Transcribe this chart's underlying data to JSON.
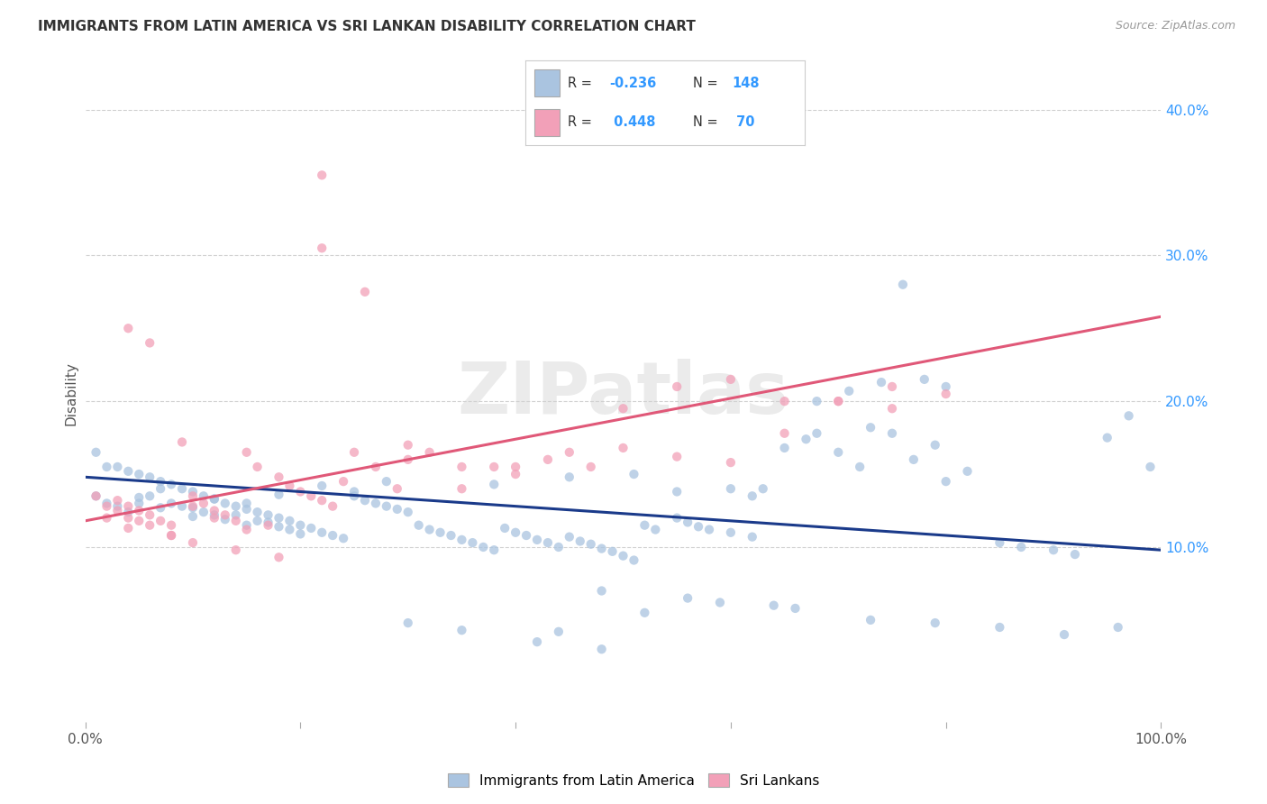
{
  "title": "IMMIGRANTS FROM LATIN AMERICA VS SRI LANKAN DISABILITY CORRELATION CHART",
  "source": "Source: ZipAtlas.com",
  "ylabel": "Disability",
  "xlim": [
    0.0,
    1.0
  ],
  "ylim": [
    -0.02,
    0.43
  ],
  "yticks": [
    0.1,
    0.2,
    0.3,
    0.4
  ],
  "ytick_labels": [
    "10.0%",
    "20.0%",
    "30.0%",
    "40.0%"
  ],
  "xticks": [
    0.0,
    0.2,
    0.4,
    0.6,
    0.8,
    1.0
  ],
  "xtick_labels": [
    "0.0%",
    "",
    "",
    "",
    "",
    "100.0%"
  ],
  "color_blue": "#aac4e0",
  "color_pink": "#f2a0b8",
  "line_color_blue": "#1a3a8a",
  "line_color_pink": "#e05878",
  "watermark": "ZIPatlas",
  "background_color": "#ffffff",
  "grid_color": "#cccccc",
  "blue_scatter_x": [
    0.01,
    0.02,
    0.03,
    0.04,
    0.05,
    0.05,
    0.06,
    0.06,
    0.07,
    0.07,
    0.08,
    0.08,
    0.09,
    0.09,
    0.1,
    0.1,
    0.11,
    0.11,
    0.12,
    0.12,
    0.13,
    0.13,
    0.14,
    0.14,
    0.15,
    0.15,
    0.16,
    0.16,
    0.17,
    0.17,
    0.18,
    0.18,
    0.19,
    0.19,
    0.2,
    0.2,
    0.21,
    0.22,
    0.23,
    0.24,
    0.25,
    0.26,
    0.27,
    0.28,
    0.29,
    0.3,
    0.31,
    0.32,
    0.33,
    0.34,
    0.35,
    0.36,
    0.37,
    0.38,
    0.39,
    0.4,
    0.41,
    0.42,
    0.43,
    0.44,
    0.45,
    0.46,
    0.47,
    0.48,
    0.49,
    0.5,
    0.51,
    0.52,
    0.53,
    0.55,
    0.56,
    0.57,
    0.58,
    0.6,
    0.62,
    0.63,
    0.65,
    0.67,
    0.68,
    0.7,
    0.72,
    0.73,
    0.75,
    0.77,
    0.79,
    0.8,
    0.82,
    0.85,
    0.87,
    0.9,
    0.92,
    0.95,
    0.97,
    0.99,
    0.51,
    0.45,
    0.38,
    0.6,
    0.55,
    0.62,
    0.68,
    0.71,
    0.74,
    0.76,
    0.78,
    0.8,
    0.64,
    0.56,
    0.48,
    0.52,
    0.59,
    0.66,
    0.73,
    0.79,
    0.85,
    0.91,
    0.96,
    0.44,
    0.42,
    0.48,
    0.3,
    0.35,
    0.28,
    0.25,
    0.22,
    0.18,
    0.15,
    0.12,
    0.1,
    0.07,
    0.05,
    0.03,
    0.01,
    0.02,
    0.04,
    0.06,
    0.08,
    0.03,
    0.04,
    0.05,
    0.06,
    0.07,
    0.08,
    0.09,
    0.1
  ],
  "blue_scatter_y": [
    0.165,
    0.155,
    0.155,
    0.152,
    0.15,
    0.13,
    0.148,
    0.135,
    0.145,
    0.127,
    0.143,
    0.13,
    0.14,
    0.128,
    0.138,
    0.121,
    0.135,
    0.124,
    0.133,
    0.122,
    0.13,
    0.119,
    0.128,
    0.122,
    0.126,
    0.115,
    0.124,
    0.118,
    0.122,
    0.117,
    0.12,
    0.114,
    0.118,
    0.112,
    0.115,
    0.109,
    0.113,
    0.11,
    0.108,
    0.106,
    0.135,
    0.132,
    0.13,
    0.128,
    0.126,
    0.124,
    0.115,
    0.112,
    0.11,
    0.108,
    0.105,
    0.103,
    0.1,
    0.098,
    0.113,
    0.11,
    0.108,
    0.105,
    0.103,
    0.1,
    0.107,
    0.104,
    0.102,
    0.099,
    0.097,
    0.094,
    0.091,
    0.115,
    0.112,
    0.12,
    0.117,
    0.114,
    0.112,
    0.11,
    0.107,
    0.14,
    0.168,
    0.174,
    0.178,
    0.165,
    0.155,
    0.182,
    0.178,
    0.16,
    0.17,
    0.145,
    0.152,
    0.103,
    0.1,
    0.098,
    0.095,
    0.175,
    0.19,
    0.155,
    0.15,
    0.148,
    0.143,
    0.14,
    0.138,
    0.135,
    0.2,
    0.207,
    0.213,
    0.28,
    0.215,
    0.21,
    0.06,
    0.065,
    0.07,
    0.055,
    0.062,
    0.058,
    0.05,
    0.048,
    0.045,
    0.04,
    0.045,
    0.042,
    0.035,
    0.03,
    0.048,
    0.043,
    0.145,
    0.138,
    0.142,
    0.136,
    0.13,
    0.133,
    0.127,
    0.14,
    0.134,
    0.128,
    0.135,
    0.13,
    0.124
  ],
  "pink_scatter_x": [
    0.01,
    0.02,
    0.02,
    0.03,
    0.03,
    0.04,
    0.04,
    0.04,
    0.05,
    0.05,
    0.06,
    0.06,
    0.07,
    0.08,
    0.08,
    0.09,
    0.1,
    0.1,
    0.11,
    0.12,
    0.13,
    0.14,
    0.15,
    0.16,
    0.17,
    0.18,
    0.19,
    0.2,
    0.21,
    0.22,
    0.22,
    0.23,
    0.24,
    0.25,
    0.27,
    0.29,
    0.3,
    0.32,
    0.35,
    0.38,
    0.4,
    0.43,
    0.47,
    0.5,
    0.55,
    0.6,
    0.65,
    0.7,
    0.75,
    0.8,
    0.12,
    0.15,
    0.08,
    0.1,
    0.14,
    0.18,
    0.22,
    0.26,
    0.3,
    0.35,
    0.4,
    0.45,
    0.5,
    0.55,
    0.6,
    0.65,
    0.7,
    0.75,
    0.04,
    0.06
  ],
  "pink_scatter_y": [
    0.135,
    0.128,
    0.12,
    0.132,
    0.125,
    0.128,
    0.12,
    0.113,
    0.125,
    0.118,
    0.122,
    0.115,
    0.118,
    0.115,
    0.108,
    0.172,
    0.135,
    0.128,
    0.13,
    0.125,
    0.122,
    0.118,
    0.165,
    0.155,
    0.115,
    0.148,
    0.142,
    0.138,
    0.135,
    0.132,
    0.355,
    0.128,
    0.145,
    0.165,
    0.155,
    0.14,
    0.16,
    0.165,
    0.14,
    0.155,
    0.15,
    0.16,
    0.155,
    0.195,
    0.21,
    0.215,
    0.2,
    0.2,
    0.21,
    0.205,
    0.12,
    0.112,
    0.108,
    0.103,
    0.098,
    0.093,
    0.305,
    0.275,
    0.17,
    0.155,
    0.155,
    0.165,
    0.168,
    0.162,
    0.158,
    0.178,
    0.2,
    0.195,
    0.25,
    0.24
  ],
  "blue_trend_x": [
    0.0,
    1.0
  ],
  "blue_trend_y": [
    0.148,
    0.098
  ],
  "pink_trend_x": [
    0.0,
    1.0
  ],
  "pink_trend_y": [
    0.118,
    0.258
  ]
}
